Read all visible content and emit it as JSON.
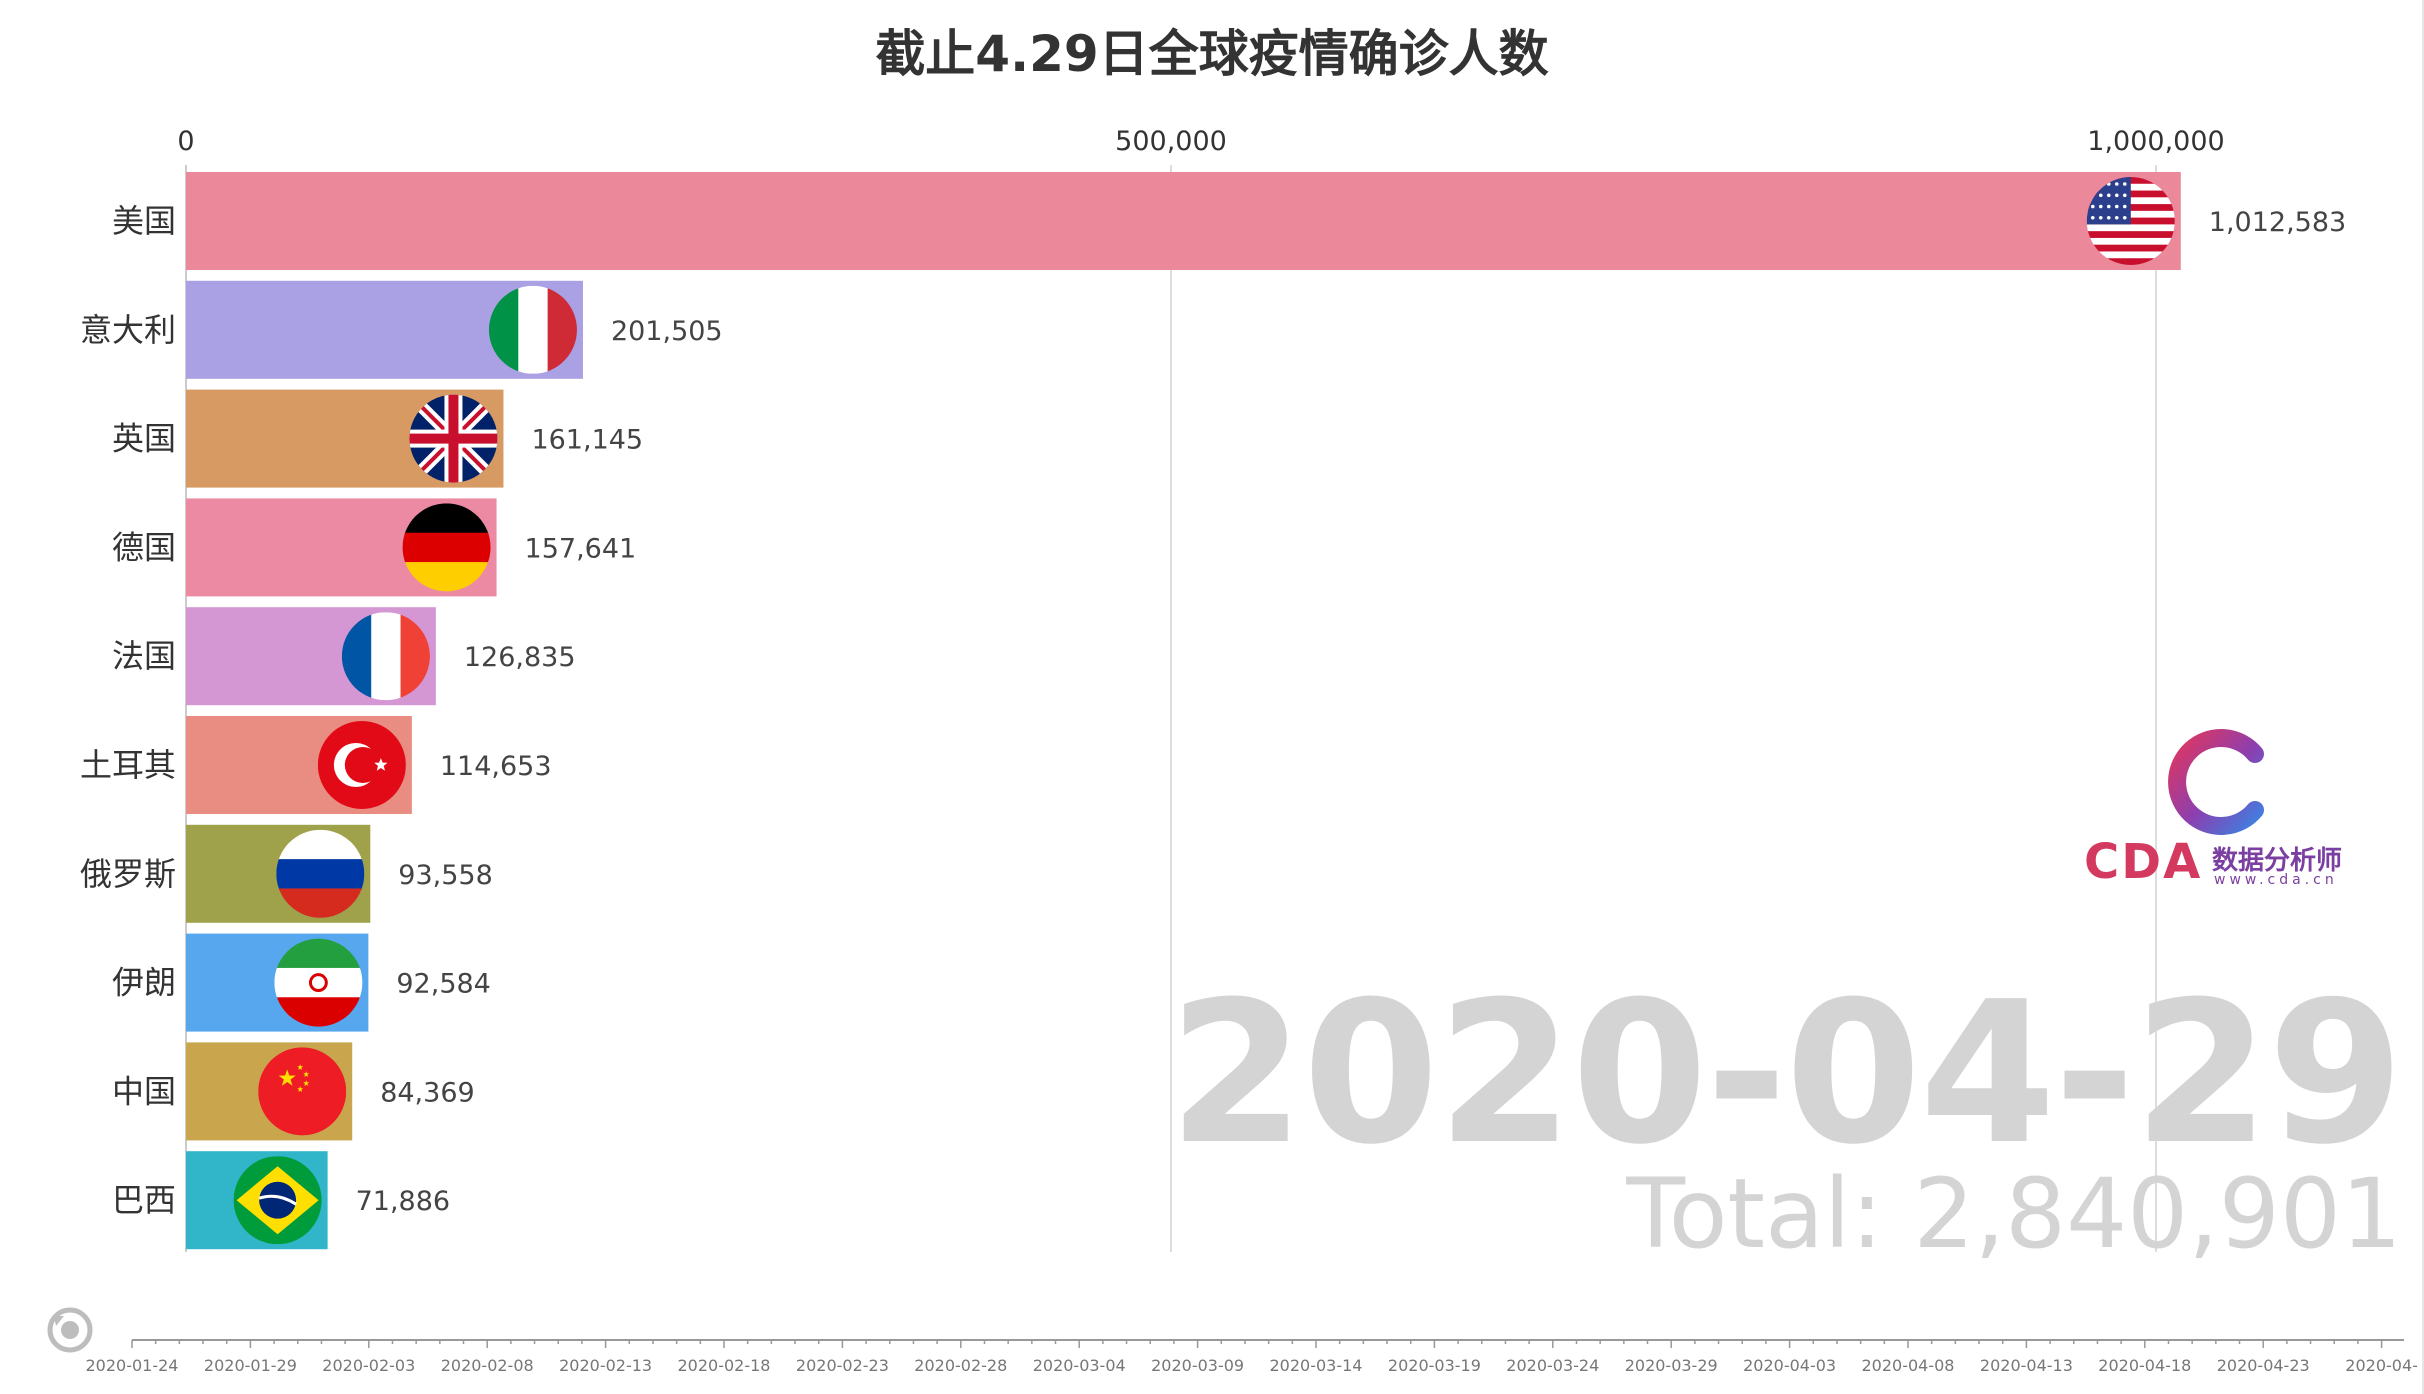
{
  "title": "截止4.29日全球疫情确诊人数",
  "date_label": "2020-04-29",
  "total_text": "Total: 2,840,901",
  "logo": {
    "brand": "CDA",
    "cn_name": "数据分析师",
    "url": "www.cda.cn"
  },
  "timeline": {
    "ticks": [
      "2020-01-24",
      "2020-01-29",
      "2020-02-03",
      "2020-02-08",
      "2020-02-13",
      "2020-02-18",
      "2020-02-23",
      "2020-02-28",
      "2020-03-04",
      "2020-03-09",
      "2020-03-14",
      "2020-03-19",
      "2020-03-24",
      "2020-03-29",
      "2020-04-03",
      "2020-04-08",
      "2020-04-13",
      "2020-04-18",
      "2020-04-23",
      "2020-04-"
    ],
    "replay_icon": "replay-icon"
  },
  "chart_data": {
    "type": "bar",
    "orientation": "horizontal",
    "title": "截止4.29日全球疫情确诊人数",
    "xlim": [
      0,
      1100000
    ],
    "x_ticks": [
      0,
      500000,
      1000000
    ],
    "x_tick_labels": [
      "0",
      "500,000",
      "1,000,000"
    ],
    "grid": true,
    "categories": [
      "美国",
      "意大利",
      "英国",
      "德国",
      "法国",
      "土耳其",
      "俄罗斯",
      "伊朗",
      "中国",
      "巴西"
    ],
    "values": [
      1012583,
      201505,
      161145,
      157641,
      126835,
      114653,
      93558,
      92584,
      84369,
      71886
    ],
    "value_labels": [
      "1,012,583",
      "201,505",
      "161,145",
      "157,641",
      "126,835",
      "114,653",
      "93,558",
      "92,584",
      "84,369",
      "71,886"
    ],
    "colors": [
      "#eb899b",
      "#aaa0e4",
      "#d69a62",
      "#eb8aa2",
      "#d497d4",
      "#e98d82",
      "#a0a24b",
      "#56a7ee",
      "#c9a64e",
      "#30b5c9"
    ],
    "flags": [
      "us-flag-icon",
      "italy-flag-icon",
      "uk-flag-icon",
      "germany-flag-icon",
      "france-flag-icon",
      "turkey-flag-icon",
      "russia-flag-icon",
      "iran-flag-icon",
      "china-flag-icon",
      "brazil-flag-icon"
    ]
  }
}
